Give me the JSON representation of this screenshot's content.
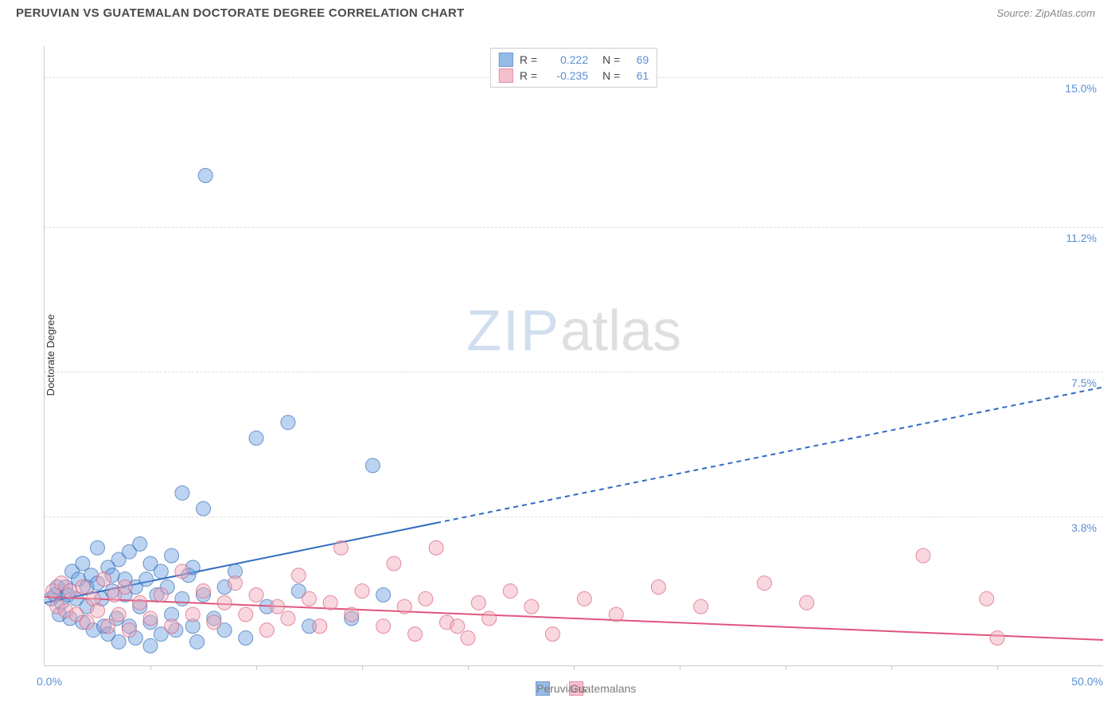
{
  "title": "PERUVIAN VS GUATEMALAN DOCTORATE DEGREE CORRELATION CHART",
  "source_label": "Source:",
  "source_name": "ZipAtlas.com",
  "ylabel": "Doctorate Degree",
  "watermark_zip": "ZIP",
  "watermark_atlas": "atlas",
  "chart": {
    "type": "scatter",
    "xlim": [
      0,
      50
    ],
    "ylim": [
      0,
      15.8
    ],
    "x_tick_step": 5,
    "x_label_min": "0.0%",
    "x_label_max": "50.0%",
    "y_ticks": [
      {
        "value": 3.8,
        "label": "3.8%"
      },
      {
        "value": 7.5,
        "label": "7.5%"
      },
      {
        "value": 11.2,
        "label": "11.2%"
      },
      {
        "value": 15.0,
        "label": "15.0%"
      }
    ],
    "grid_color": "#dddddd",
    "background_color": "#ffffff",
    "marker_radius": 9,
    "marker_opacity": 0.45,
    "marker_stroke_opacity": 0.7,
    "line_width": 2,
    "dash_pattern": "6,5",
    "series": [
      {
        "name": "Peruvians",
        "color": "#6b9fe0",
        "stroke": "#3a6fb5",
        "line_color": "#2f6bc2",
        "R": "0.222",
        "N": "69",
        "trend": {
          "y_intercept": 1.6,
          "slope": 0.11,
          "solid_end_x": 18.5
        },
        "points": [
          [
            0.3,
            1.7
          ],
          [
            0.5,
            1.8
          ],
          [
            0.6,
            2.0
          ],
          [
            0.7,
            1.3
          ],
          [
            0.8,
            1.6
          ],
          [
            1.0,
            2.0
          ],
          [
            1.1,
            1.8
          ],
          [
            1.3,
            2.4
          ],
          [
            1.2,
            1.2
          ],
          [
            1.5,
            1.7
          ],
          [
            1.6,
            2.2
          ],
          [
            1.8,
            2.6
          ],
          [
            1.8,
            1.1
          ],
          [
            2.0,
            1.5
          ],
          [
            2.0,
            2.0
          ],
          [
            2.2,
            2.3
          ],
          [
            2.3,
            0.9
          ],
          [
            2.5,
            2.1
          ],
          [
            2.5,
            3.0
          ],
          [
            2.8,
            1.0
          ],
          [
            2.7,
            1.7
          ],
          [
            3.0,
            2.5
          ],
          [
            3.0,
            0.8
          ],
          [
            3.2,
            1.9
          ],
          [
            3.2,
            2.3
          ],
          [
            3.4,
            1.2
          ],
          [
            3.5,
            2.7
          ],
          [
            3.5,
            0.6
          ],
          [
            3.8,
            1.8
          ],
          [
            3.8,
            2.2
          ],
          [
            4.0,
            1.0
          ],
          [
            4.0,
            2.9
          ],
          [
            4.3,
            2.0
          ],
          [
            4.3,
            0.7
          ],
          [
            4.5,
            1.5
          ],
          [
            4.5,
            3.1
          ],
          [
            4.8,
            2.2
          ],
          [
            5.0,
            1.1
          ],
          [
            5.0,
            2.6
          ],
          [
            5.0,
            0.5
          ],
          [
            5.3,
            1.8
          ],
          [
            5.5,
            2.4
          ],
          [
            5.5,
            0.8
          ],
          [
            5.8,
            2.0
          ],
          [
            6.0,
            1.3
          ],
          [
            6.0,
            2.8
          ],
          [
            6.2,
            0.9
          ],
          [
            6.5,
            4.4
          ],
          [
            6.5,
            1.7
          ],
          [
            6.8,
            2.3
          ],
          [
            7.0,
            1.0
          ],
          [
            7.0,
            2.5
          ],
          [
            7.2,
            0.6
          ],
          [
            7.5,
            4.0
          ],
          [
            7.5,
            1.8
          ],
          [
            7.6,
            12.5
          ],
          [
            8.0,
            1.2
          ],
          [
            8.5,
            2.0
          ],
          [
            8.5,
            0.9
          ],
          [
            9.0,
            2.4
          ],
          [
            9.5,
            0.7
          ],
          [
            10.0,
            5.8
          ],
          [
            10.5,
            1.5
          ],
          [
            11.5,
            6.2
          ],
          [
            12.0,
            1.9
          ],
          [
            12.5,
            1.0
          ],
          [
            14.5,
            1.2
          ],
          [
            15.5,
            5.1
          ],
          [
            16.0,
            1.8
          ]
        ]
      },
      {
        "name": "Guatemalans",
        "color": "#f2a6b8",
        "stroke": "#d6607f",
        "line_color": "#e0567c",
        "R": "-0.235",
        "N": "61",
        "trend": {
          "y_intercept": 1.75,
          "slope": -0.022,
          "solid_end_x": 50
        },
        "points": [
          [
            0.4,
            1.9
          ],
          [
            0.6,
            1.5
          ],
          [
            0.8,
            2.1
          ],
          [
            1.0,
            1.4
          ],
          [
            1.2,
            1.9
          ],
          [
            1.5,
            1.3
          ],
          [
            1.8,
            2.0
          ],
          [
            2.0,
            1.1
          ],
          [
            2.3,
            1.7
          ],
          [
            2.5,
            1.4
          ],
          [
            2.8,
            2.2
          ],
          [
            3.0,
            1.0
          ],
          [
            3.3,
            1.8
          ],
          [
            3.5,
            1.3
          ],
          [
            3.8,
            2.0
          ],
          [
            4.0,
            0.9
          ],
          [
            4.5,
            1.6
          ],
          [
            5.0,
            1.2
          ],
          [
            5.5,
            1.8
          ],
          [
            6.0,
            1.0
          ],
          [
            6.5,
            2.4
          ],
          [
            7.0,
            1.3
          ],
          [
            7.5,
            1.9
          ],
          [
            8.0,
            1.1
          ],
          [
            8.5,
            1.6
          ],
          [
            9.0,
            2.1
          ],
          [
            9.5,
            1.3
          ],
          [
            10.0,
            1.8
          ],
          [
            10.5,
            0.9
          ],
          [
            11.0,
            1.5
          ],
          [
            11.5,
            1.2
          ],
          [
            12.0,
            2.3
          ],
          [
            12.5,
            1.7
          ],
          [
            13.0,
            1.0
          ],
          [
            13.5,
            1.6
          ],
          [
            14.0,
            3.0
          ],
          [
            14.5,
            1.3
          ],
          [
            15.0,
            1.9
          ],
          [
            16.0,
            1.0
          ],
          [
            16.5,
            2.6
          ],
          [
            17.0,
            1.5
          ],
          [
            17.5,
            0.8
          ],
          [
            18.0,
            1.7
          ],
          [
            18.5,
            3.0
          ],
          [
            19.0,
            1.1
          ],
          [
            19.5,
            1.0
          ],
          [
            20.0,
            0.7
          ],
          [
            20.5,
            1.6
          ],
          [
            21.0,
            1.2
          ],
          [
            22.0,
            1.9
          ],
          [
            23.0,
            1.5
          ],
          [
            24.0,
            0.8
          ],
          [
            25.5,
            1.7
          ],
          [
            27.0,
            1.3
          ],
          [
            29.0,
            2.0
          ],
          [
            31.0,
            1.5
          ],
          [
            34.0,
            2.1
          ],
          [
            36.0,
            1.6
          ],
          [
            41.5,
            2.8
          ],
          [
            44.5,
            1.7
          ],
          [
            45.0,
            0.7
          ]
        ]
      }
    ],
    "legend_labels": {
      "R": "R =",
      "N": "N ="
    }
  }
}
